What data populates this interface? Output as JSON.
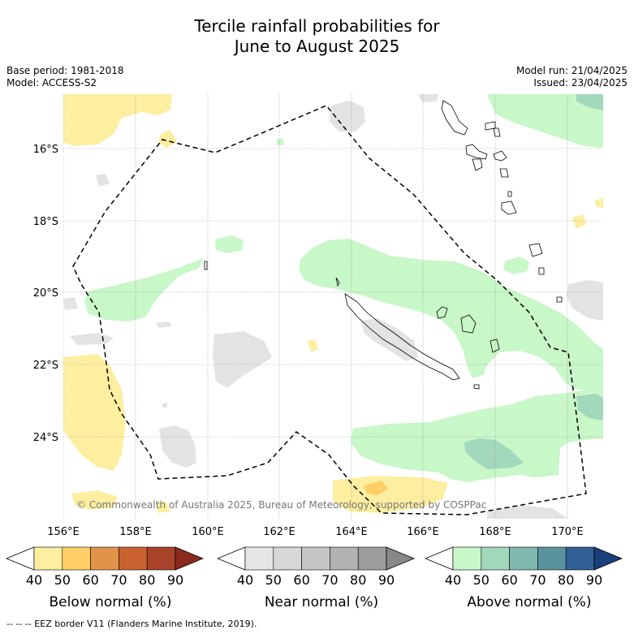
{
  "title": {
    "line1": "Tercile rainfall probabilities for",
    "line2": "June to August 2025"
  },
  "meta": {
    "base_period": "Base period: 1981-2018",
    "model": "Model: ACCESS-S2",
    "model_run": "Model run: 21/04/2025",
    "issued": "Issued: 23/04/2025"
  },
  "axes": {
    "lat_labels": [
      "16°S",
      "18°S",
      "20°S",
      "22°S",
      "24°S"
    ],
    "lon_labels": [
      "156°E",
      "158°E",
      "160°E",
      "162°E",
      "164°E",
      "166°E",
      "168°E",
      "170°E"
    ]
  },
  "copyright": "© Commonwealth of Australia 2025, Bureau of Meteorology, supported by COSPPac",
  "colorbars": [
    {
      "title": "Below normal (%)",
      "ticks": [
        "40",
        "50",
        "60",
        "70",
        "80",
        "90"
      ],
      "colors": [
        "#fdeea0",
        "#fdcf66",
        "#e0944a",
        "#c9622e",
        "#a8432a",
        "#8b2a1e"
      ]
    },
    {
      "title": "Near normal (%)",
      "ticks": [
        "40",
        "50",
        "60",
        "70",
        "80",
        "90"
      ],
      "colors": [
        "#e6e6e6",
        "#d7d7d7",
        "#c5c5c5",
        "#b2b2b2",
        "#9d9d9d",
        "#888888"
      ]
    },
    {
      "title": "Above normal (%)",
      "ticks": [
        "40",
        "50",
        "60",
        "70",
        "80",
        "90"
      ],
      "colors": [
        "#c8f7c8",
        "#a2d8bc",
        "#7fb8ae",
        "#5a939e",
        "#315f95",
        "#1a3f7a"
      ]
    }
  ],
  "footer": "--  --  -- EEZ border V11 (Flanders Marine Institute, 2019)."
}
